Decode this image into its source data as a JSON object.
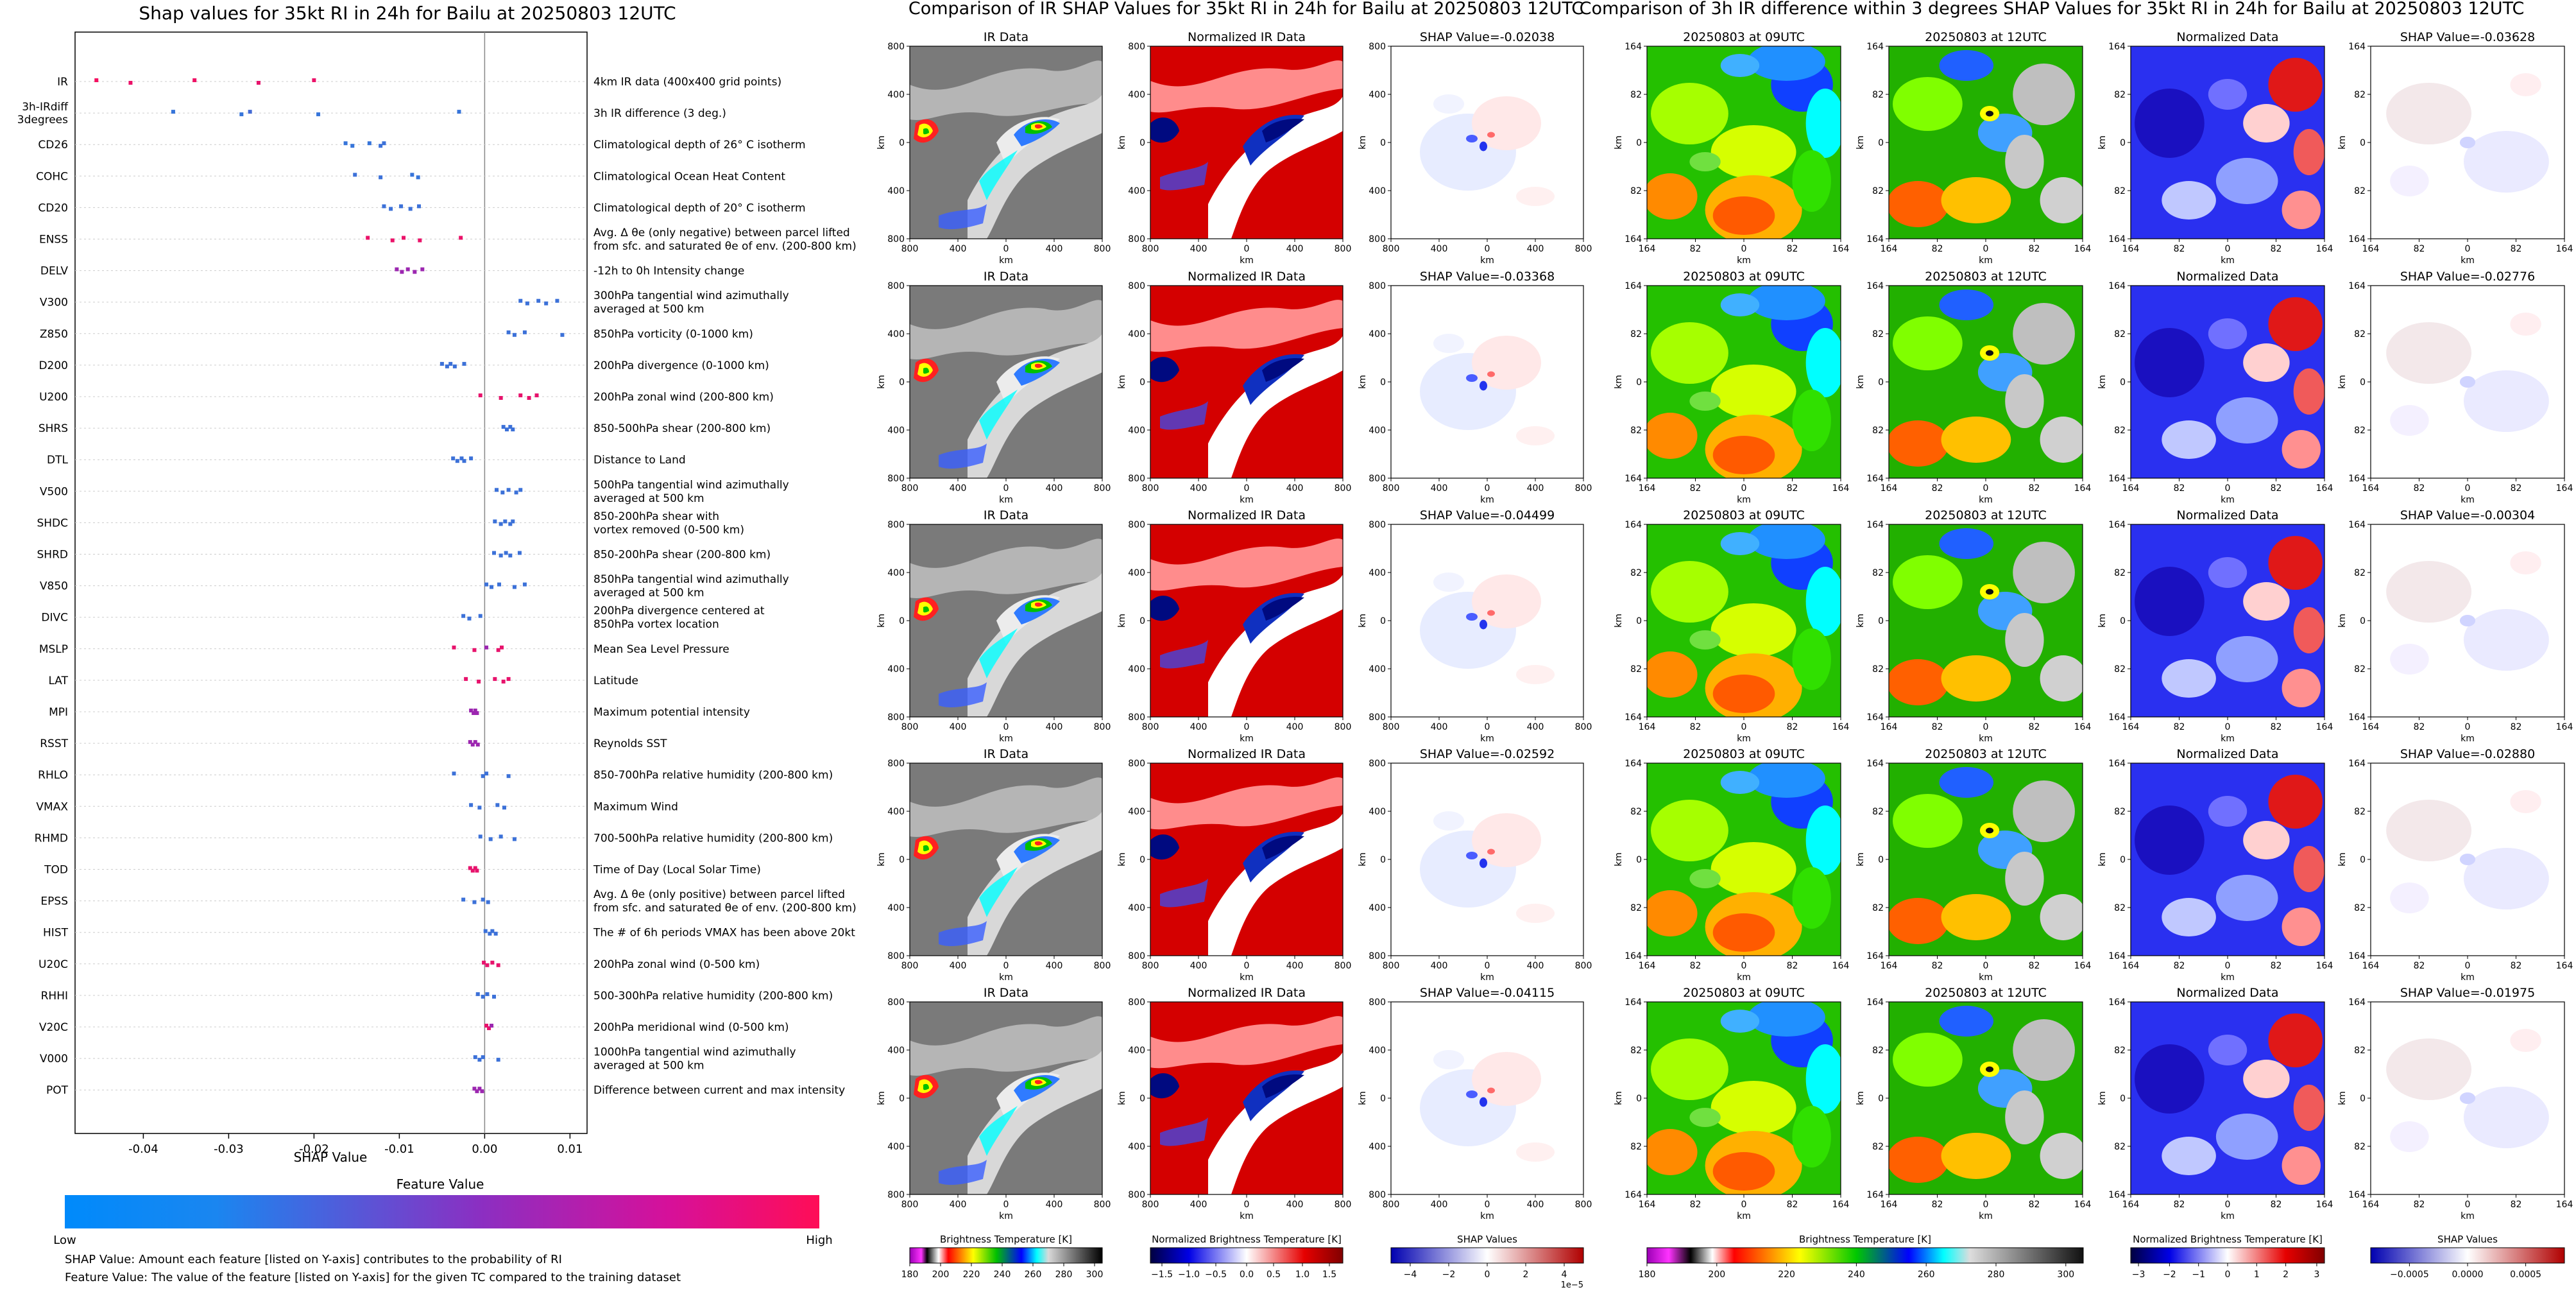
{
  "shap_panel": {
    "title": "Shap values for 35kt RI in 24h for Bailu at 20250803 12UTC",
    "xlabel": "SHAP Value",
    "xticks": [
      "-0.04",
      "-0.03",
      "-0.02",
      "-0.01",
      "0.00",
      "0.01"
    ],
    "colorbar_title": "Feature Value",
    "colorbar_low": "Low",
    "colorbar_high": "High",
    "colors": {
      "low": "#1e88e5",
      "mid": "#9c27b0",
      "high": "#ff0d57"
    },
    "note1": "SHAP Value: Amount each feature [listed on Y-axis] contributes to the probability of RI",
    "note2": "Feature Value: The value of the feature [listed on Y-axis] for the given TC compared to the training dataset"
  },
  "chart_data": {
    "type": "scatter",
    "title": "Shap values for 35kt RI in 24h for Bailu at 20250803 12UTC",
    "xlabel": "SHAP Value",
    "xlim": [
      -0.048,
      0.012
    ],
    "features": [
      {
        "code": "IR",
        "desc": "4km IR data (400x400 grid points)",
        "points": [
          [
            -0.0455,
            0.95
          ],
          [
            -0.0415,
            0.9
          ],
          [
            -0.034,
            0.92
          ],
          [
            -0.0265,
            0.88
          ],
          [
            -0.02,
            0.9
          ]
        ]
      },
      {
        "code": "3h-IRdiff\n3degrees",
        "desc": "3h IR difference (3 deg.)",
        "points": [
          [
            -0.0365,
            0.1
          ],
          [
            -0.0285,
            0.1
          ],
          [
            -0.0275,
            0.15
          ],
          [
            -0.0195,
            0.1
          ],
          [
            -0.003,
            0.1
          ]
        ]
      },
      {
        "code": "CD26",
        "desc": "Climatological depth of 26° C isotherm",
        "points": [
          [
            -0.0163,
            0.1
          ],
          [
            -0.0155,
            0.1
          ],
          [
            -0.0135,
            0.1
          ],
          [
            -0.0122,
            0.12
          ],
          [
            -0.0118,
            0.12
          ]
        ]
      },
      {
        "code": "COHC",
        "desc": "Climatological Ocean Heat Content",
        "points": [
          [
            -0.0152,
            0.12
          ],
          [
            -0.0122,
            0.12
          ],
          [
            -0.0085,
            0.1
          ],
          [
            -0.0078,
            0.1
          ]
        ]
      },
      {
        "code": "CD20",
        "desc": "Climatological depth of 20° C isotherm",
        "points": [
          [
            -0.0118,
            0.12
          ],
          [
            -0.011,
            0.12
          ],
          [
            -0.0098,
            0.12
          ],
          [
            -0.0087,
            0.12
          ],
          [
            -0.0077,
            0.12
          ]
        ]
      },
      {
        "code": "ENSS",
        "desc": "Avg. Δ θe (only negative) between parcel lifted\nfrom sfc. and saturated θe of env. (200-800 km)",
        "points": [
          [
            -0.0137,
            0.9
          ],
          [
            -0.0108,
            0.9
          ],
          [
            -0.0095,
            0.9
          ],
          [
            -0.0076,
            0.9
          ],
          [
            -0.0028,
            0.9
          ]
        ]
      },
      {
        "code": "DELV",
        "desc": "-12h to 0h Intensity change",
        "points": [
          [
            -0.0103,
            0.5
          ],
          [
            -0.0097,
            0.5
          ],
          [
            -0.009,
            0.5
          ],
          [
            -0.0082,
            0.5
          ],
          [
            -0.0073,
            0.5
          ]
        ]
      },
      {
        "code": "V300",
        "desc": "300hPa tangential wind azimuthally\naveraged at 500 km",
        "points": [
          [
            0.0042,
            0.12
          ],
          [
            0.005,
            0.12
          ],
          [
            0.0063,
            0.12
          ],
          [
            0.0072,
            0.12
          ],
          [
            0.0085,
            0.12
          ]
        ]
      },
      {
        "code": "Z850",
        "desc": "850hPa vorticity (0-1000 km)",
        "points": [
          [
            0.0028,
            0.12
          ],
          [
            0.0035,
            0.12
          ],
          [
            0.0047,
            0.12
          ],
          [
            0.0091,
            0.12
          ]
        ]
      },
      {
        "code": "D200",
        "desc": "200hPa divergence (0-1000 km)",
        "points": [
          [
            -0.005,
            0.12
          ],
          [
            -0.0044,
            0.12
          ],
          [
            -0.004,
            0.12
          ],
          [
            -0.0035,
            0.12
          ],
          [
            -0.0024,
            0.12
          ]
        ]
      },
      {
        "code": "U200",
        "desc": "200hPa zonal wind (200-800 km)",
        "points": [
          [
            -0.0005,
            0.88
          ],
          [
            0.0019,
            0.88
          ],
          [
            0.0042,
            0.88
          ],
          [
            0.0052,
            0.88
          ],
          [
            0.0061,
            0.88
          ]
        ]
      },
      {
        "code": "SHRS",
        "desc": "850-500hPa shear (200-800 km)",
        "points": [
          [
            0.0022,
            0.12
          ],
          [
            0.0026,
            0.12
          ],
          [
            0.003,
            0.12
          ],
          [
            0.0033,
            0.12
          ]
        ]
      },
      {
        "code": "DTL",
        "desc": "Distance to Land",
        "points": [
          [
            -0.0037,
            0.12
          ],
          [
            -0.0032,
            0.12
          ],
          [
            -0.0027,
            0.12
          ],
          [
            -0.0024,
            0.12
          ],
          [
            -0.0016,
            0.12
          ]
        ]
      },
      {
        "code": "V500",
        "desc": "500hPa tangential wind azimuthally\naveraged at 500 km",
        "points": [
          [
            0.0014,
            0.12
          ],
          [
            0.0021,
            0.12
          ],
          [
            0.0028,
            0.12
          ],
          [
            0.0037,
            0.12
          ],
          [
            0.0042,
            0.12
          ]
        ]
      },
      {
        "code": "SHDC",
        "desc": "850-200hPa shear with\nvortex removed (0-500 km)",
        "points": [
          [
            0.0012,
            0.12
          ],
          [
            0.0019,
            0.12
          ],
          [
            0.0024,
            0.12
          ],
          [
            0.003,
            0.12
          ],
          [
            0.0033,
            0.12
          ]
        ]
      },
      {
        "code": "SHRD",
        "desc": "850-200hPa shear (200-800 km)",
        "points": [
          [
            0.0011,
            0.12
          ],
          [
            0.0019,
            0.12
          ],
          [
            0.0025,
            0.12
          ],
          [
            0.003,
            0.12
          ],
          [
            0.0041,
            0.12
          ]
        ]
      },
      {
        "code": "V850",
        "desc": "850hPa tangential wind azimuthally\naveraged at 500 km",
        "points": [
          [
            0.0002,
            0.12
          ],
          [
            0.0008,
            0.12
          ],
          [
            0.0017,
            0.12
          ],
          [
            0.0035,
            0.12
          ],
          [
            0.0047,
            0.12
          ]
        ]
      },
      {
        "code": "DIVC",
        "desc": "200hPa divergence centered at\n850hPa vortex location",
        "points": [
          [
            -0.0025,
            0.12
          ],
          [
            -0.0018,
            0.12
          ],
          [
            -0.0005,
            0.12
          ]
        ]
      },
      {
        "code": "MSLP",
        "desc": "Mean Sea Level Pressure",
        "points": [
          [
            -0.0036,
            0.88
          ],
          [
            -0.0012,
            0.88
          ],
          [
            0.0002,
            0.5
          ],
          [
            0.0016,
            0.88
          ],
          [
            0.002,
            0.88
          ]
        ]
      },
      {
        "code": "LAT",
        "desc": "Latitude",
        "points": [
          [
            -0.0022,
            0.88
          ],
          [
            -0.0007,
            0.88
          ],
          [
            0.0012,
            0.88
          ],
          [
            0.0022,
            0.88
          ],
          [
            0.0028,
            0.88
          ]
        ]
      },
      {
        "code": "MPI",
        "desc": "Maximum potential intensity",
        "points": [
          [
            -0.0016,
            0.5
          ],
          [
            -0.0013,
            0.5
          ],
          [
            -0.0011,
            0.5
          ],
          [
            -0.0009,
            0.5
          ]
        ]
      },
      {
        "code": "RSST",
        "desc": "Reynolds SST",
        "points": [
          [
            -0.0017,
            0.5
          ],
          [
            -0.0014,
            0.5
          ],
          [
            -0.0011,
            0.5
          ],
          [
            -0.0008,
            0.5
          ]
        ]
      },
      {
        "code": "RHLO",
        "desc": "850-700hPa relative humidity (200-800 km)",
        "points": [
          [
            -0.0036,
            0.12
          ],
          [
            -0.0002,
            0.12
          ],
          [
            0.0002,
            0.12
          ],
          [
            0.0028,
            0.12
          ]
        ]
      },
      {
        "code": "VMAX",
        "desc": "Maximum Wind",
        "points": [
          [
            -0.0016,
            0.12
          ],
          [
            -0.0006,
            0.12
          ],
          [
            0.0015,
            0.12
          ],
          [
            0.0023,
            0.12
          ]
        ]
      },
      {
        "code": "RHMD",
        "desc": "700-500hPa relative humidity (200-800 km)",
        "points": [
          [
            -0.0005,
            0.12
          ],
          [
            0.0007,
            0.12
          ],
          [
            0.0019,
            0.12
          ],
          [
            0.0035,
            0.12
          ]
        ]
      },
      {
        "code": "TOD",
        "desc": "Time of Day (Local Solar Time)",
        "points": [
          [
            -0.0017,
            0.88
          ],
          [
            -0.0014,
            0.88
          ],
          [
            -0.0011,
            0.88
          ],
          [
            -0.0009,
            0.88
          ]
        ]
      },
      {
        "code": "EPSS",
        "desc": "Avg. Δ θe (only positive) between parcel lifted\nfrom sfc. and saturated θe of env. (200-800 km)",
        "points": [
          [
            -0.0025,
            0.12
          ],
          [
            -0.0012,
            0.12
          ],
          [
            -0.0002,
            0.12
          ],
          [
            0.0004,
            0.12
          ]
        ]
      },
      {
        "code": "HIST",
        "desc": "The # of 6h periods VMAX has been above 20kt",
        "points": [
          [
            0.0001,
            0.12
          ],
          [
            0.0006,
            0.12
          ],
          [
            0.0009,
            0.12
          ],
          [
            0.0013,
            0.12
          ]
        ]
      },
      {
        "code": "U20C",
        "desc": "200hPa zonal wind (0-500 km)",
        "points": [
          [
            -0.0001,
            0.88
          ],
          [
            0.0003,
            0.88
          ],
          [
            0.0009,
            0.88
          ],
          [
            0.0016,
            0.88
          ]
        ]
      },
      {
        "code": "RHHI",
        "desc": "500-300hPa relative humidity (200-800 km)",
        "points": [
          [
            -0.0008,
            0.12
          ],
          [
            -0.0002,
            0.12
          ],
          [
            0.0003,
            0.12
          ],
          [
            0.0011,
            0.12
          ]
        ]
      },
      {
        "code": "V20C",
        "desc": "200hPa meridional wind (0-500 km)",
        "points": [
          [
            0.0002,
            0.88
          ],
          [
            0.0005,
            0.88
          ],
          [
            0.0008,
            0.5
          ]
        ]
      },
      {
        "code": "V000",
        "desc": "1000hPa tangential wind azimuthally\naveraged at 500 km",
        "points": [
          [
            -0.0011,
            0.12
          ],
          [
            -0.0006,
            0.12
          ],
          [
            -0.0002,
            0.12
          ],
          [
            0.0016,
            0.12
          ]
        ]
      },
      {
        "code": "POT",
        "desc": "Difference between current and max intensity",
        "points": [
          [
            -0.0012,
            0.5
          ],
          [
            -0.0009,
            0.5
          ],
          [
            -0.0006,
            0.5
          ],
          [
            -0.0003,
            0.5
          ]
        ]
      }
    ]
  },
  "middle": {
    "title": "Comparison of IR SHAP Values for 35kt RI in 24h for Bailu at 20250803 12UTC",
    "col_titles": [
      "IR Data",
      "Normalized IR Data"
    ],
    "shap_values": [
      "SHAP Value=-0.02038",
      "SHAP Value=-0.03368",
      "SHAP Value=-0.04499",
      "SHAP Value=-0.02592",
      "SHAP Value=-0.04115"
    ],
    "yticks": [
      "800",
      "400",
      "0",
      "400",
      "800"
    ],
    "xticks": [
      "800",
      "400",
      "0",
      "400",
      "800"
    ],
    "axis_label": "km",
    "cb1_label": "Brightness Temperature [K]",
    "cb1_ticks": [
      "180",
      "200",
      "220",
      "240",
      "260",
      "280",
      "300"
    ],
    "cb2_label": "Normalized Brightness Temperature [K]",
    "cb2_ticks": [
      "−1.5",
      "−1.0",
      "−0.5",
      "0.0",
      "0.5",
      "1.0",
      "1.5"
    ],
    "cb3_label": "SHAP Values",
    "cb3_ticks": [
      "−4",
      "−2",
      "0",
      "2",
      "4"
    ],
    "cb3_exp": "1e−5"
  },
  "right": {
    "title": "Comparison of 3h IR difference within 3 degrees SHAP Values for 35kt RI in 24h for Bailu at 20250803 12UTC",
    "col_titles": [
      "20250803 at 09UTC",
      "20250803 at 12UTC",
      "Normalized Data"
    ],
    "shap_values": [
      "SHAP Value=-0.03628",
      "SHAP Value=-0.02776",
      "SHAP Value=-0.00304",
      "SHAP Value=-0.02880",
      "SHAP Value=-0.01975"
    ],
    "yticks": [
      "164",
      "82",
      "0",
      "82",
      "164"
    ],
    "xticks": [
      "164",
      "82",
      "0",
      "82",
      "164"
    ],
    "axis_label": "km",
    "cb1_label": "Brightness Temperature [K]",
    "cb1_ticks": [
      "180",
      "200",
      "220",
      "240",
      "260",
      "280",
      "300"
    ],
    "cb2_label": "Normalized Brightness Temperature [K]",
    "cb2_ticks": [
      "−3",
      "−2",
      "−1",
      "0",
      "1",
      "2",
      "3"
    ],
    "cb3_label": "SHAP Values",
    "cb3_ticks": [
      "−0.0005",
      "0.0000",
      "0.0005"
    ]
  }
}
